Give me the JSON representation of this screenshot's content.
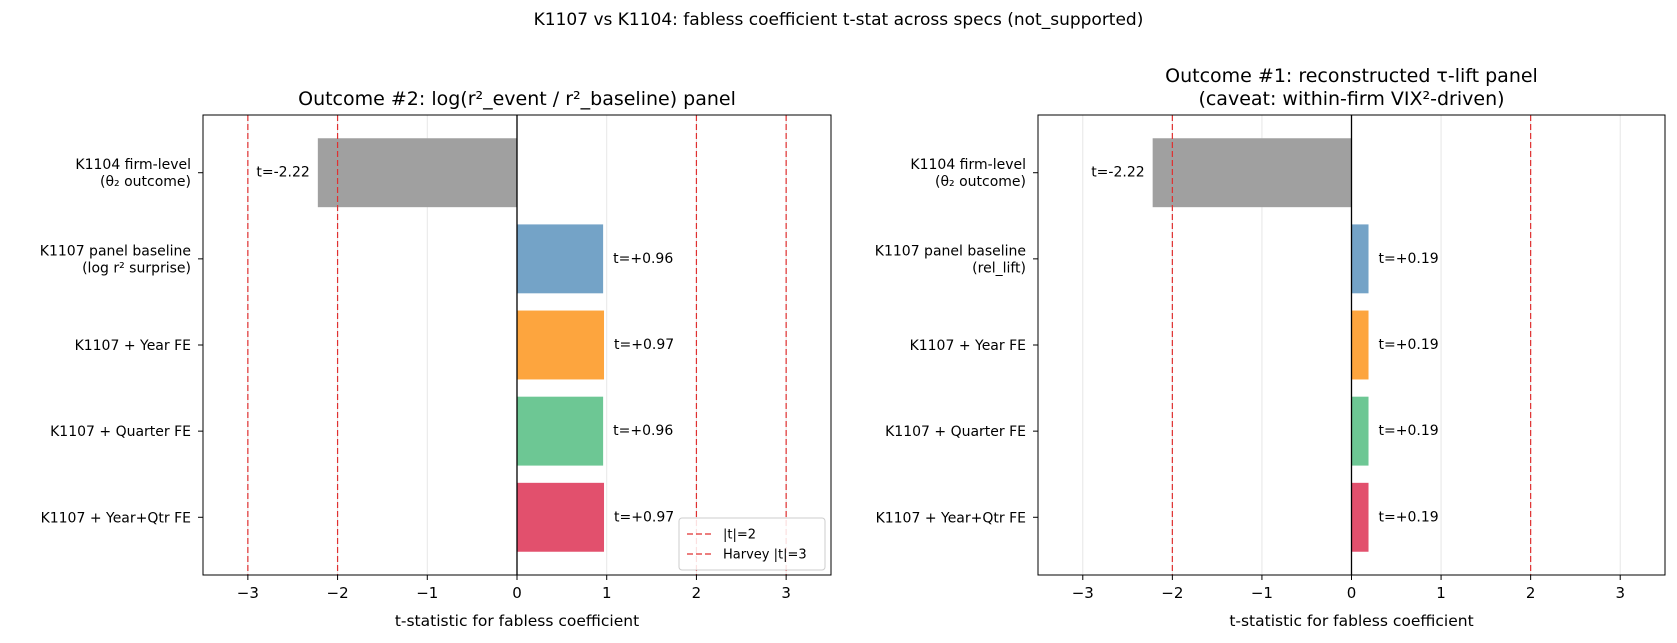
{
  "figure": {
    "suptitle": "K1107 vs K1104: fabless coefficient t-stat across specs (not_supported)"
  },
  "chart_data": [
    {
      "type": "bar",
      "orientation": "horizontal",
      "title": "Outcome #2: log(r²_event / r²_baseline) panel",
      "xlabel": "t-statistic for fabless coefficient",
      "ylabel": "",
      "xlim": [
        -3.5,
        3.5
      ],
      "xticks": [
        -3,
        -2,
        -1,
        0,
        1,
        2,
        3
      ],
      "xtick_labels": [
        "−3",
        "−2",
        "−1",
        "0",
        "1",
        "2",
        "3"
      ],
      "grid": "x",
      "categories": [
        [
          "K1104 firm-level",
          "(θ₂ outcome)"
        ],
        [
          "K1107 panel baseline",
          "(log r² surprise)"
        ],
        [
          "K1107 + Year FE"
        ],
        [
          "K1107 + Quarter FE"
        ],
        [
          "K1107 + Year+Qtr FE"
        ]
      ],
      "values": [
        -2.22,
        0.96,
        0.97,
        0.96,
        0.97
      ],
      "bar_labels": [
        "t=-2.22",
        "t=+0.96",
        "t=+0.97",
        "t=+0.96",
        "t=+0.97"
      ],
      "colors": [
        "#a0a0a0",
        "#74a3c7",
        "#fda53e",
        "#6dc794",
        "#e2506d"
      ],
      "reference_lines": [
        {
          "x": -2,
          "group": "|t|=2"
        },
        {
          "x": 2,
          "group": "|t|=2"
        },
        {
          "x": -3,
          "group": "Harvey |t|=3"
        },
        {
          "x": 3,
          "group": "Harvey |t|=3"
        }
      ],
      "reference_color": "#e03030",
      "legend": {
        "placement": "lower-right",
        "entries": [
          "|t|=2",
          "Harvey |t|=3"
        ]
      }
    },
    {
      "type": "bar",
      "orientation": "horizontal",
      "title": "Outcome #1: reconstructed τ-lift panel\n(caveat: within-firm VIX²-driven)",
      "xlabel": "t-statistic for fabless coefficient",
      "ylabel": "",
      "xlim": [
        -3.5,
        3.5
      ],
      "xticks": [
        -3,
        -2,
        -1,
        0,
        1,
        2,
        3
      ],
      "xtick_labels": [
        "−3",
        "−2",
        "−1",
        "0",
        "1",
        "2",
        "3"
      ],
      "grid": "x",
      "categories": [
        [
          "K1104 firm-level",
          "(θ₂ outcome)"
        ],
        [
          "K1107 panel baseline",
          "(rel_lift)"
        ],
        [
          "K1107 + Year FE"
        ],
        [
          "K1107 + Quarter FE"
        ],
        [
          "K1107 + Year+Qtr FE"
        ]
      ],
      "values": [
        -2.22,
        0.19,
        0.19,
        0.19,
        0.19
      ],
      "bar_labels": [
        "t=-2.22",
        "t=+0.19",
        "t=+0.19",
        "t=+0.19",
        "t=+0.19"
      ],
      "colors": [
        "#a0a0a0",
        "#74a3c7",
        "#fda53e",
        "#6dc794",
        "#e2506d"
      ],
      "reference_lines": [
        {
          "x": -2,
          "group": "|t|=2"
        },
        {
          "x": 2,
          "group": "|t|=2"
        }
      ],
      "reference_color": "#e03030",
      "legend": null
    }
  ]
}
